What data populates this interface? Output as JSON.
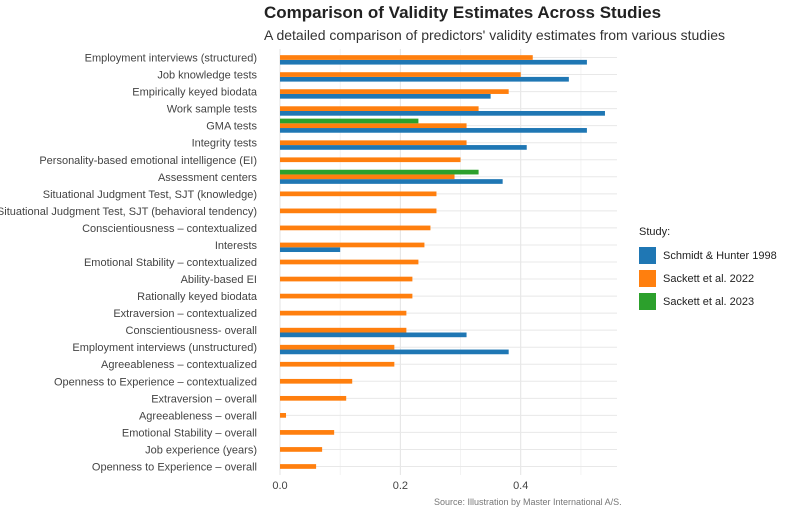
{
  "chart_data": {
    "type": "bar",
    "orientation": "horizontal",
    "title": "Comparison of Validity Estimates Across Studies",
    "subtitle": "A detailed comparison of predictors' validity estimates from various studies",
    "caption": "Source: Illustration by Master International A/S.",
    "xlabel": "",
    "ylabel": "",
    "xlim": [
      0,
      0.56
    ],
    "xticks": [
      0.0,
      0.2,
      0.4
    ],
    "xtick_labels": [
      "0.0",
      "0.2",
      "0.4"
    ],
    "grid": true,
    "legend_title": "Study:",
    "legend_position": "right",
    "categories": [
      "Employment interviews (structured)",
      "Job knowledge tests",
      "Empirically keyed biodata",
      "Work sample tests",
      "GMA tests",
      "Integrity tests",
      "Personality-based emotional intelligence (EI)",
      "Assessment centers",
      "Situational Judgment Test, SJT (knowledge)",
      "Situational Judgment Test, SJT (behavioral tendency)",
      "Conscientiousness – contextualized",
      "Interests",
      "Emotional Stability – contextualized",
      "Ability-based EI",
      "Rationally keyed biodata",
      "Extraversion – contextualized",
      "Conscientiousness- overall",
      "Employment interviews (unstructured)",
      "Agreeableness – contextualized",
      "Openness to Experience – contextualized",
      "Extraversion – overall",
      "Agreeableness – overall",
      "Emotional Stability – overall",
      "Job experience (years)",
      "Openness to Experience – overall"
    ],
    "series": [
      {
        "name": "Schmidt & Hunter 1998",
        "color": "#1f77b4",
        "values": [
          0.51,
          0.48,
          0.35,
          0.54,
          0.51,
          0.41,
          null,
          0.37,
          null,
          null,
          null,
          0.1,
          null,
          null,
          null,
          null,
          0.31,
          0.38,
          null,
          null,
          null,
          null,
          null,
          null,
          null
        ]
      },
      {
        "name": "Sackett et al. 2022",
        "color": "#ff7f0e",
        "values": [
          0.42,
          0.4,
          0.38,
          0.33,
          0.31,
          0.31,
          0.3,
          0.29,
          0.26,
          0.26,
          0.25,
          0.24,
          0.23,
          0.22,
          0.22,
          0.21,
          0.21,
          0.19,
          0.19,
          0.12,
          0.11,
          0.01,
          0.09,
          0.07,
          0.06
        ]
      },
      {
        "name": "Sackett et al. 2023",
        "color": "#2ca02c",
        "values": [
          null,
          null,
          null,
          null,
          0.23,
          null,
          null,
          0.33,
          null,
          null,
          null,
          null,
          null,
          null,
          null,
          null,
          null,
          null,
          null,
          null,
          null,
          null,
          null,
          null,
          null
        ]
      }
    ]
  }
}
